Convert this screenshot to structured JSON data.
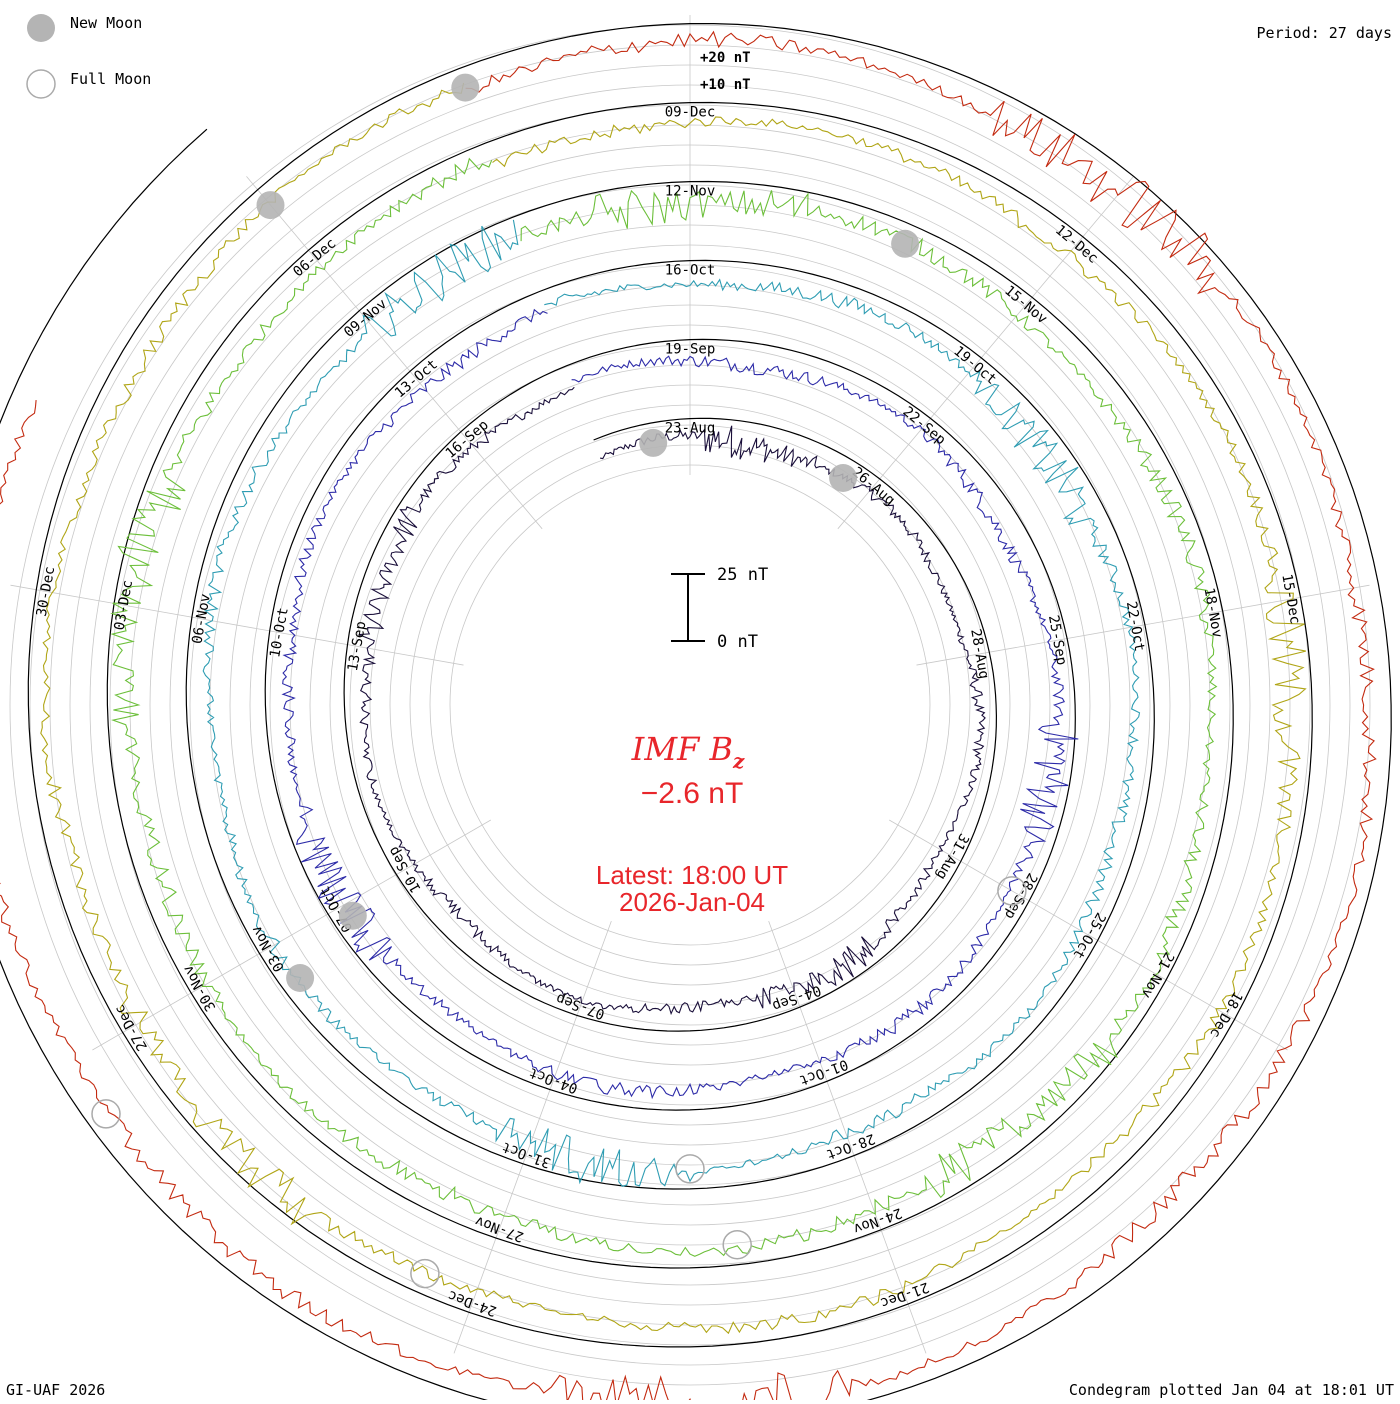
{
  "header": {
    "new_moon_label": "New Moon",
    "full_moon_label": "Full Moon",
    "period_label": "Period: 27 days"
  },
  "footer": {
    "credit": "GI-UAF 2026",
    "plotted": "Condegram plotted Jan 04 at 18:01 UT"
  },
  "colors": {
    "grid": "#c8c8c8",
    "radial": "#c8c8c8",
    "baseline": "#000000",
    "title": "#e8262b",
    "moon_new": "#b4b4b4",
    "moon_full": "#aaaaaa"
  },
  "chart_data": {
    "type": "line",
    "variant": "condegram-spiral",
    "title": "IMF B",
    "title_subscript": "z",
    "current_value": "−2.6 nT",
    "latest": "Latest: 18:00 UT",
    "latest_date": "2026-Jan-04",
    "period_days": 27,
    "scale_labels": {
      "plus20": "+20 nT",
      "plus10": "+10 nT"
    },
    "scale_bar": {
      "top": "25 nT",
      "bottom": "0 nT"
    },
    "series": [
      {
        "name": "Aug–Sep",
        "color": "#1a0f3a",
        "noise": 4,
        "date_labels": [
          "23-Aug",
          "26-Aug",
          "28-Aug",
          "31-Aug",
          "04-Sep",
          "07-Sep",
          "10-Sep",
          "13-Sep",
          "16-Sep"
        ]
      },
      {
        "name": "Sep–Oct",
        "color": "#2d2ba8",
        "noise": 5,
        "date_labels": [
          "19-Sep",
          "22-Sep",
          "25-Sep",
          "28-Sep",
          "01-Oct",
          "04-Oct",
          "07-Oct",
          "10-Oct",
          "13-Oct"
        ]
      },
      {
        "name": "Oct–Nov",
        "color": "#2f9db3",
        "noise": 5,
        "date_labels": [
          "16-Oct",
          "19-Oct",
          "22-Oct",
          "25-Oct",
          "28-Oct",
          "31-Oct",
          "03-Nov",
          "06-Nov",
          "09-Nov"
        ]
      },
      {
        "name": "Nov",
        "color": "#6cbf3a",
        "noise": 6,
        "date_labels": [
          "12-Nov",
          "15-Nov",
          "18-Nov",
          "21-Nov",
          "24-Nov",
          "27-Nov",
          "30-Nov",
          "03-Dec",
          "06-Dec"
        ]
      },
      {
        "name": "Dec",
        "color": "#b0a516",
        "noise": 5,
        "date_labels": [
          "09-Dec",
          "12-Dec",
          "15-Dec",
          "18-Dec",
          "21-Dec",
          "24-Dec",
          "27-Dec",
          "30-Dec"
        ]
      },
      {
        "name": "Dec–Jan",
        "color": "#c32a10",
        "noise": 6,
        "date_labels": []
      }
    ]
  }
}
